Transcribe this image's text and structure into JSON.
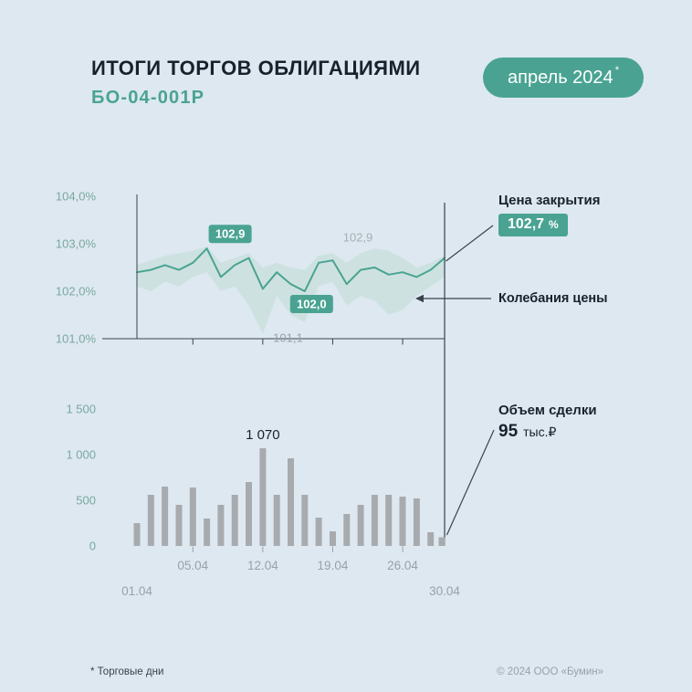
{
  "header": {
    "title": "ИТОГИ ТОРГОВ ОБЛИГАЦИЯМИ",
    "subtitle": "БО-04-001Р",
    "badge_label": "апрель 2024",
    "badge_asterisk": "*"
  },
  "panel": {
    "closing": {
      "title": "Цена закрытия",
      "value": "102,7",
      "unit": "%"
    },
    "fluctuation": {
      "label": "Колебания цены"
    },
    "volume": {
      "title": "Объем сделки",
      "value": "95",
      "unit": "тыс.₽"
    }
  },
  "footer": {
    "note": "* Торговые дни",
    "copyright": "© 2024 ООО «Бумин»"
  },
  "colors": {
    "teal": "#4AA392",
    "band_fill": "#BFDCD2",
    "bar_gray": "#A8ABAE",
    "axis_dark": "#39424B",
    "label_teal": "#79A89F",
    "label_gray": "#98A1A9",
    "text_dark": "#17222D",
    "gray_green_label": "#A5B1AF"
  },
  "chart_data": [
    {
      "type": "line",
      "title": "Цена закрытия",
      "unit": "%",
      "ylim": [
        101.0,
        104.0
      ],
      "yticks": {
        "values": [
          104,
          103,
          102,
          101
        ],
        "labels": [
          "104,0%",
          "103,0%",
          "102,0%",
          "101,0%"
        ]
      },
      "xticks": {
        "indices": [
          4,
          9,
          14,
          19
        ],
        "labels": [
          "05.04",
          "12.04",
          "19.04",
          "26.04"
        ]
      },
      "x_start_label": "01.04",
      "x_end_label": "30.04",
      "close": [
        102.4,
        102.45,
        102.55,
        102.45,
        102.6,
        102.9,
        102.3,
        102.55,
        102.7,
        102.05,
        102.4,
        102.15,
        102.0,
        102.6,
        102.65,
        102.15,
        102.45,
        102.5,
        102.35,
        102.4,
        102.3,
        102.45,
        102.7
      ],
      "band_high": [
        102.55,
        102.65,
        102.75,
        102.8,
        102.85,
        102.95,
        102.6,
        102.7,
        102.8,
        102.5,
        102.6,
        102.5,
        102.45,
        102.75,
        102.8,
        102.6,
        102.8,
        102.9,
        102.85,
        102.7,
        102.5,
        102.6,
        102.75
      ],
      "band_low": [
        102.1,
        102.0,
        102.2,
        102.1,
        102.3,
        102.4,
        102.0,
        102.1,
        101.7,
        101.1,
        101.9,
        101.5,
        101.35,
        102.1,
        102.2,
        101.7,
        101.9,
        101.8,
        101.5,
        101.6,
        101.9,
        102.1,
        102.3
      ],
      "annotations": {
        "peak": {
          "index": 5,
          "label": "102,9"
        },
        "trough": {
          "index": 12,
          "label": "102,0"
        },
        "band_high_label": {
          "x_index": 15.8,
          "value": 103.05,
          "label": "102,9"
        },
        "band_low_label": {
          "x_index": 10.8,
          "value": 100.93,
          "label": "101,1"
        }
      }
    },
    {
      "type": "bar",
      "title": "Объем сделки",
      "ylim": [
        0,
        1500
      ],
      "yticks": {
        "values": [
          1500,
          1000,
          500,
          0
        ],
        "labels": [
          "1 500",
          "1 000",
          "500",
          "0"
        ]
      },
      "values": [
        250,
        560,
        650,
        450,
        640,
        300,
        450,
        560,
        700,
        1070,
        560,
        960,
        560,
        310,
        160,
        350,
        450,
        560,
        560,
        540,
        520,
        150,
        95
      ],
      "annotations": {
        "max": {
          "index": 9,
          "label": "1 070"
        }
      }
    }
  ]
}
